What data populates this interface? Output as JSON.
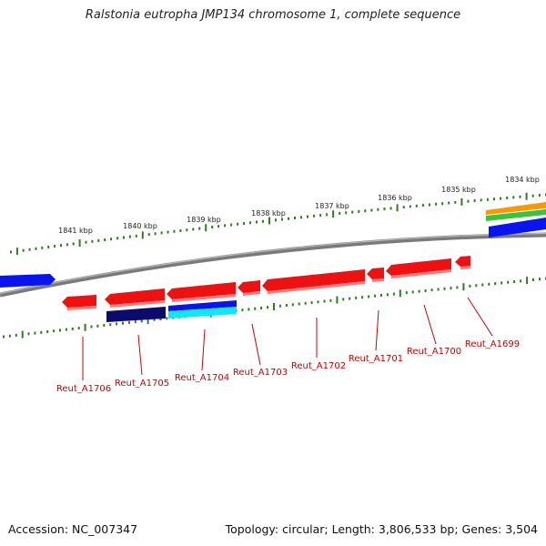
{
  "title": "Ralstonia eutropha JMP134 chromosome 1, complete sequence",
  "footer": {
    "accession": "Accession: NC_007347",
    "summary": "Topology: circular; Length: 3,806,533 bp; Genes: 3,504"
  },
  "kbp_labels": [
    "1841 kbp",
    "1840 kbp",
    "1839 kbp",
    "1838 kbp",
    "1837 kbp",
    "1836 kbp",
    "1835 kbp",
    "1834 kbp"
  ],
  "gene_labels": [
    "Reut_A1706",
    "Reut_A1705",
    "Reut_A1704",
    "Reut_A1703",
    "Reut_A1702",
    "Reut_A1701",
    "Reut_A1700",
    "Reut_A1699"
  ],
  "colors": {
    "backbone": "#7f7f7f",
    "tick": "#2e7d1e",
    "gene_red": "#ee1111",
    "gene_blue": "#0a14ee",
    "gene_navy": "#0b0b6e",
    "gene_cyan": "#12e6f2",
    "gene_orange": "#f59a00",
    "gene_green": "#3cc33c",
    "label_red": "#cc0000"
  }
}
